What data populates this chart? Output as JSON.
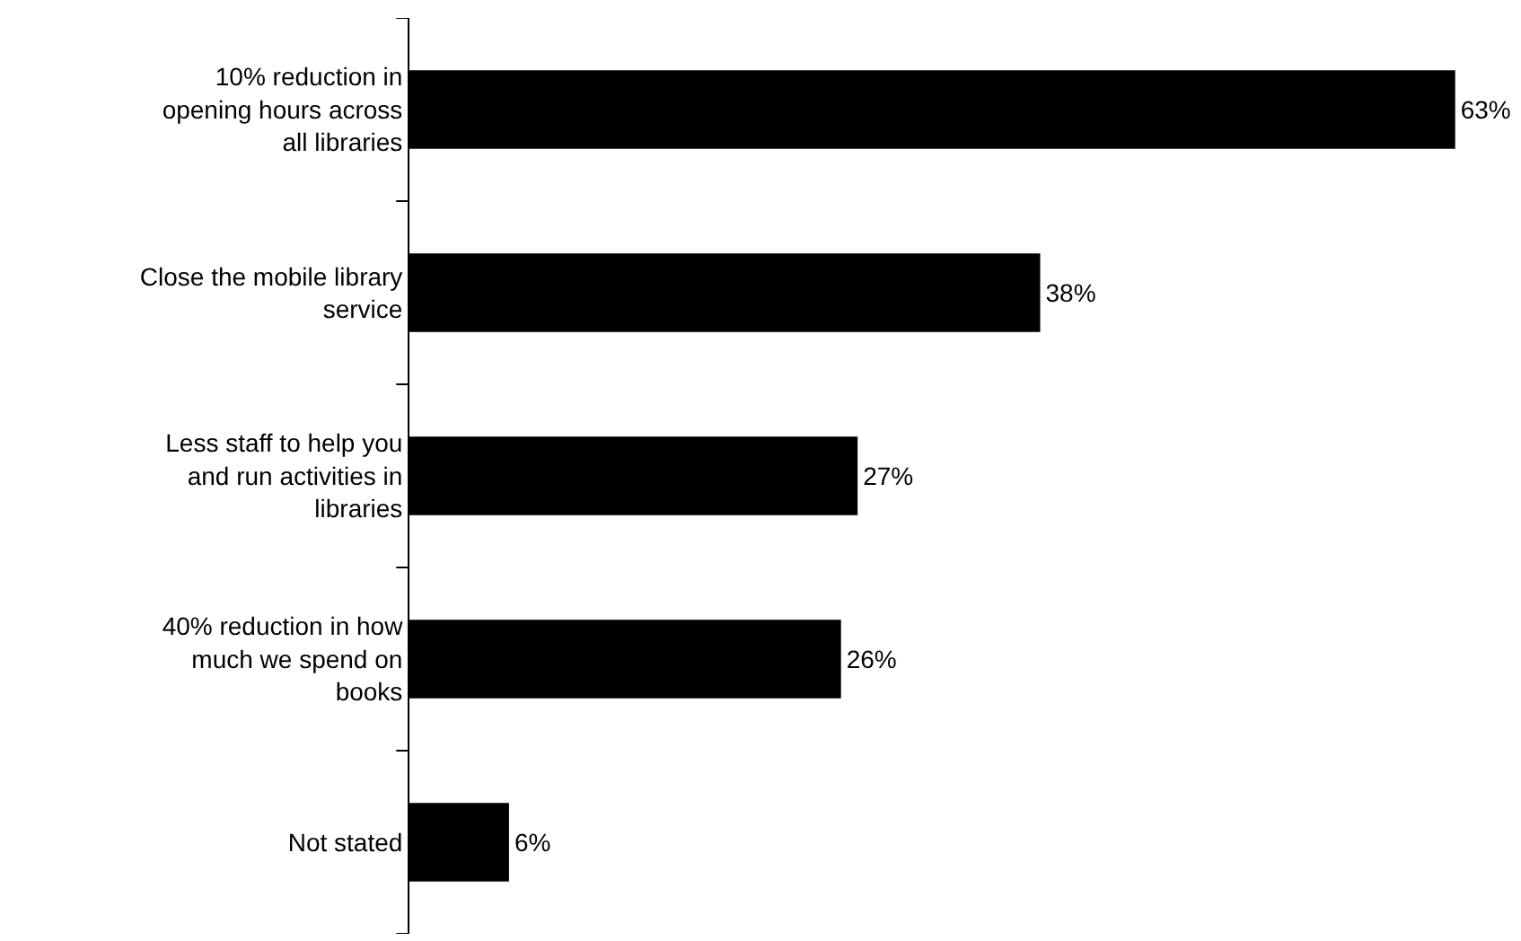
{
  "chart_data": {
    "type": "bar",
    "orientation": "horizontal",
    "categories": [
      "10% reduction in\nopening hours across\nall libraries",
      "Close the mobile library\nservice",
      "Less staff to help you\nand run activities in\nlibraries",
      "40% reduction in how\nmuch we spend on\nbooks",
      "Not stated"
    ],
    "values": [
      63,
      38,
      27,
      26,
      6
    ],
    "value_labels": [
      "63%",
      "38%",
      "27%",
      "26%",
      "6%"
    ],
    "color": "#000000",
    "grid": false,
    "tick_labels": "y"
  }
}
